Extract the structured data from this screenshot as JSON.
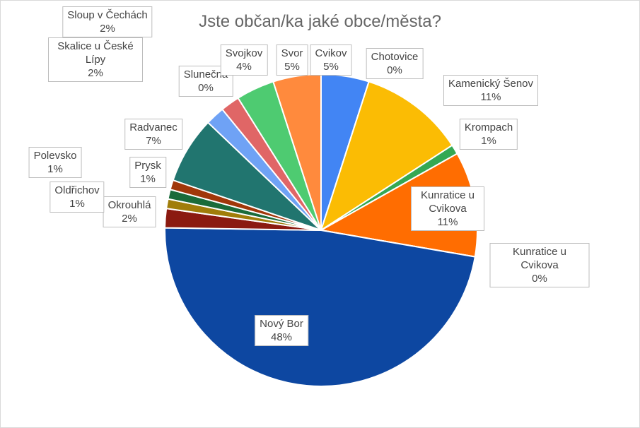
{
  "chart_data": {
    "type": "pie",
    "title": "Jste občan/ka jaké obce/města?",
    "categories": [
      "Cvikov",
      "Chotovice",
      "Kamenický Šenov",
      "Krompach",
      "Kunratice u Cvikova",
      "Kunratice u Cvikova",
      "Nový Bor",
      "Okrouhlá",
      "Oldřichov",
      "Polevsko",
      "Prysk",
      "Radvanec",
      "Skalice u České Lípy",
      "Sloup v Čechách",
      "Slunečná",
      "Svojkov",
      "Svor"
    ],
    "values": [
      5,
      0,
      11,
      1,
      11,
      0,
      48,
      2,
      1,
      1,
      1,
      7,
      2,
      2,
      0,
      4,
      5
    ],
    "value_labels": [
      "5%",
      "0%",
      "11%",
      "1%",
      "11%",
      "0%",
      "48%",
      "2%",
      "1%",
      "1%",
      "1%",
      "7%",
      "2%",
      "2%",
      "0%",
      "4%",
      "5%"
    ],
    "colors": [
      "#4285f4",
      "#ea4335",
      "#fbbc04",
      "#34a853",
      "#ff6d01",
      "#46bdc6",
      "#0d47a1",
      "#8b1a10",
      "#a07d0a",
      "#1a6b3a",
      "#a0370a",
      "#21756f",
      "#6fa2f5",
      "#e06666",
      "#fdd663",
      "#4ecb71",
      "#ff8a3d"
    ]
  }
}
